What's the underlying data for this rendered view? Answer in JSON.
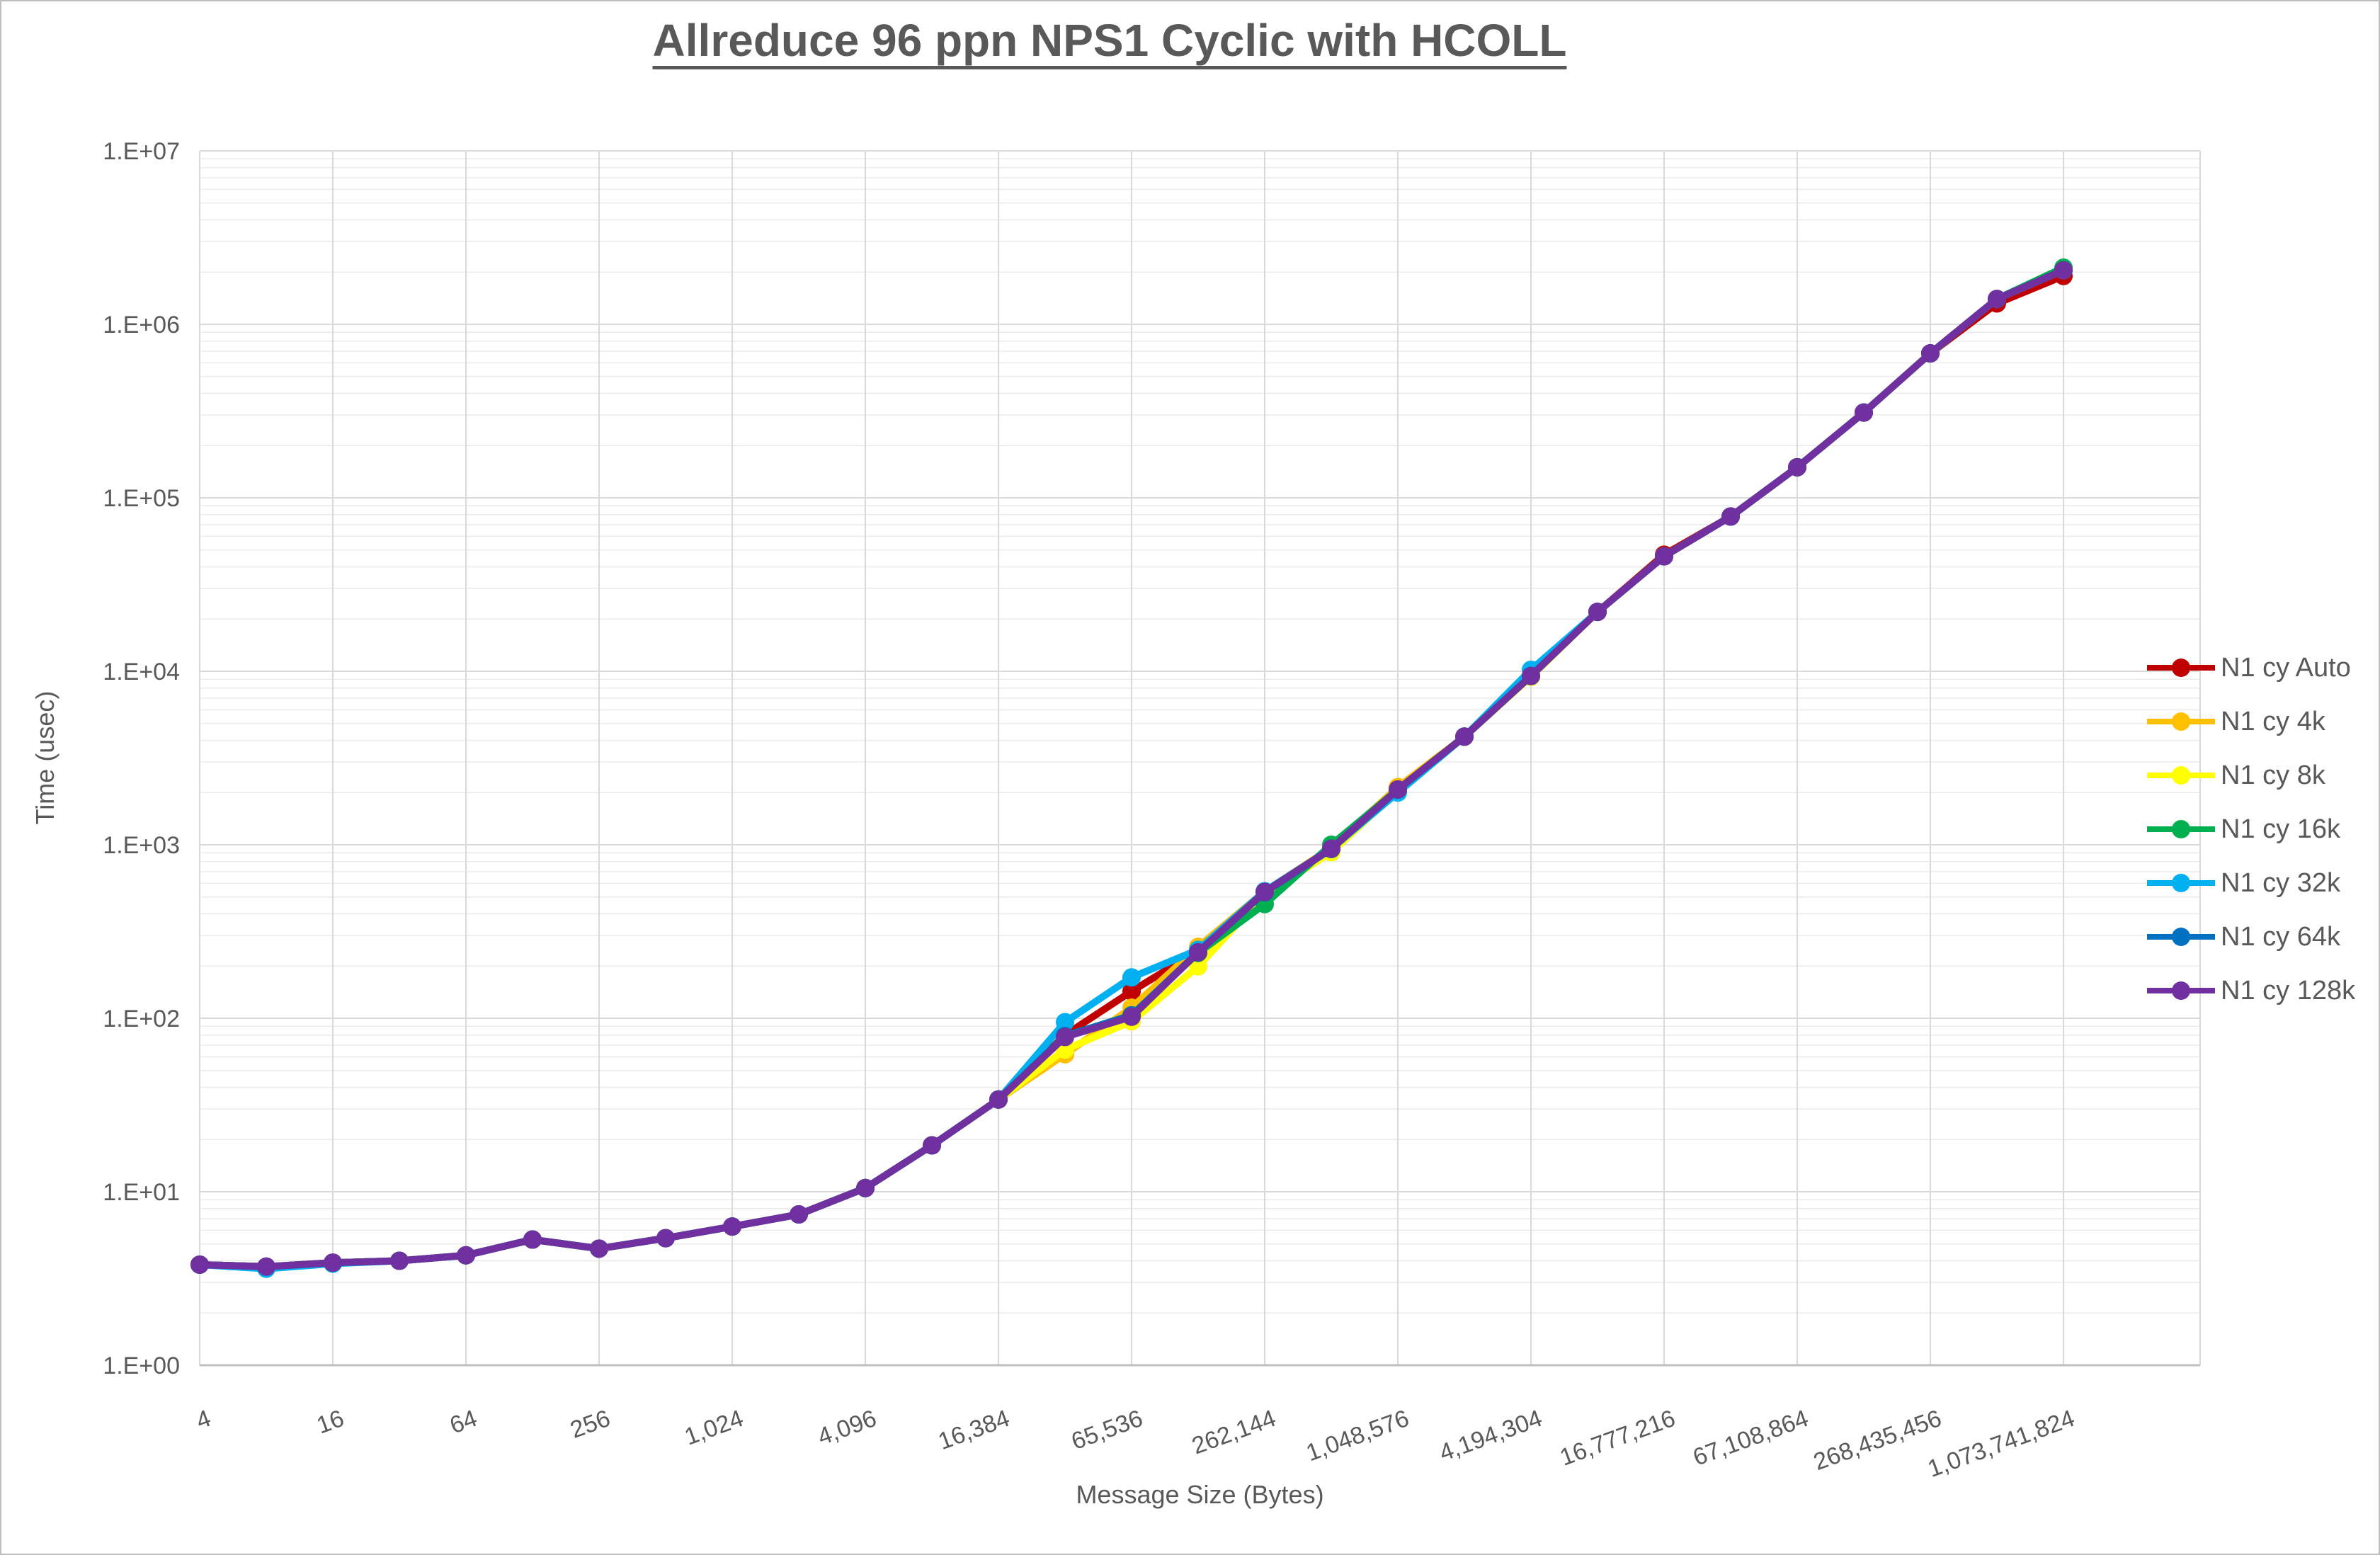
{
  "title": "Allreduce 96 ppn NPS1 Cyclic with HCOLL",
  "colors": {
    "grid_major": "#d9d9d9",
    "grid_minor": "#ebebeb",
    "axis_line": "#bfbfbf",
    "text": "#595959"
  },
  "chart_data": {
    "type": "line",
    "title": "Allreduce 96 ppn NPS1 Cyclic with HCOLL",
    "xlabel": "Message Size (Bytes)",
    "ylabel": "Time (usec)",
    "x_scale": "log2",
    "y_scale": "log10",
    "ylim": [
      1,
      10000000
    ],
    "grid": true,
    "legend_position": "right",
    "y_tick_labels": [
      "1.E+00",
      "1.E+01",
      "1.E+02",
      "1.E+03",
      "1.E+04",
      "1.E+05",
      "1.E+06",
      "1.E+07"
    ],
    "x_tick_values": [
      4,
      16,
      64,
      256,
      1024,
      4096,
      16384,
      65536,
      262144,
      1048576,
      4194304,
      16777216,
      67108864,
      268435456,
      1073741824
    ],
    "x_tick_labels": [
      "4",
      "16",
      "64",
      "256",
      "1,024",
      "4,096",
      "16,384",
      "65,536",
      "262,144",
      "1,048,576",
      "4,194,304",
      "16,777,216",
      "67,108,864",
      "268,435,456",
      "1,073,741,824"
    ],
    "x": [
      4,
      8,
      16,
      32,
      64,
      128,
      256,
      512,
      1024,
      2048,
      4096,
      8192,
      16384,
      32768,
      65536,
      131072,
      262144,
      524288,
      1048576,
      2097152,
      4194304,
      8388608,
      16777216,
      33554432,
      67108864,
      134217728,
      268435456,
      536870912,
      1073741824
    ],
    "series": [
      {
        "name": "N1 cy Auto",
        "color": "#C00000",
        "values": [
          3.8,
          3.7,
          3.9,
          4.0,
          4.3,
          5.3,
          4.7,
          5.4,
          6.3,
          7.4,
          10.5,
          18.5,
          34,
          80,
          143,
          245,
          530,
          950,
          2080,
          4200,
          9400,
          22000,
          47000,
          78000,
          150000,
          310000,
          680000,
          1320000,
          1900000
        ]
      },
      {
        "name": "N1 cy 4k",
        "color": "#FFC000",
        "values": [
          3.8,
          3.7,
          3.9,
          4.0,
          4.3,
          5.3,
          4.7,
          5.4,
          6.3,
          7.4,
          10.5,
          18.5,
          34,
          62,
          115,
          258,
          538,
          960,
          2150,
          4200,
          9400,
          22000,
          46000,
          78000,
          150000,
          310000,
          680000,
          1400000,
          2050000
        ]
      },
      {
        "name": "N1 cy 8k",
        "color": "#FFFF00",
        "values": [
          3.8,
          3.7,
          3.9,
          4.0,
          4.3,
          5.3,
          4.7,
          5.4,
          6.3,
          7.4,
          10.5,
          18.5,
          34,
          66,
          96,
          199,
          520,
          905,
          2050,
          4200,
          9300,
          22000,
          46000,
          78000,
          150000,
          310000,
          680000,
          1400000,
          2050000
        ]
      },
      {
        "name": "N1 cy 16k",
        "color": "#00B050",
        "values": [
          3.8,
          3.7,
          3.9,
          4.0,
          4.3,
          5.3,
          4.7,
          5.4,
          6.3,
          7.4,
          10.5,
          18.5,
          34,
          79,
          104,
          238,
          455,
          1000,
          2080,
          4200,
          9400,
          22000,
          46000,
          78000,
          150000,
          310000,
          680000,
          1400000,
          2120000
        ]
      },
      {
        "name": "N1 cy 32k",
        "color": "#00B0F0",
        "values": [
          3.8,
          3.6,
          3.85,
          4.0,
          4.3,
          5.3,
          4.7,
          5.4,
          6.3,
          7.4,
          10.5,
          18.5,
          34,
          95,
          172,
          248,
          540,
          950,
          2000,
          4200,
          10200,
          22000,
          46000,
          78000,
          150000,
          310000,
          680000,
          1400000,
          2050000
        ]
      },
      {
        "name": "N1 cy 64k",
        "color": "#0070C0",
        "values": [
          3.8,
          3.7,
          3.9,
          4.0,
          4.3,
          5.3,
          4.7,
          5.4,
          6.3,
          7.4,
          10.5,
          18.5,
          34,
          79,
          104,
          240,
          532,
          945,
          2080,
          4200,
          9400,
          22000,
          46000,
          78000,
          150000,
          310000,
          680000,
          1400000,
          2050000
        ]
      },
      {
        "name": "N1 cy 128k",
        "color": "#7030A0",
        "values": [
          3.8,
          3.7,
          3.9,
          4.0,
          4.3,
          5.3,
          4.7,
          5.4,
          6.3,
          7.4,
          10.5,
          18.5,
          34,
          78,
          102,
          240,
          535,
          950,
          2085,
          4200,
          9400,
          22000,
          46000,
          78000,
          150000,
          310000,
          680000,
          1400000,
          2050000
        ]
      }
    ]
  }
}
